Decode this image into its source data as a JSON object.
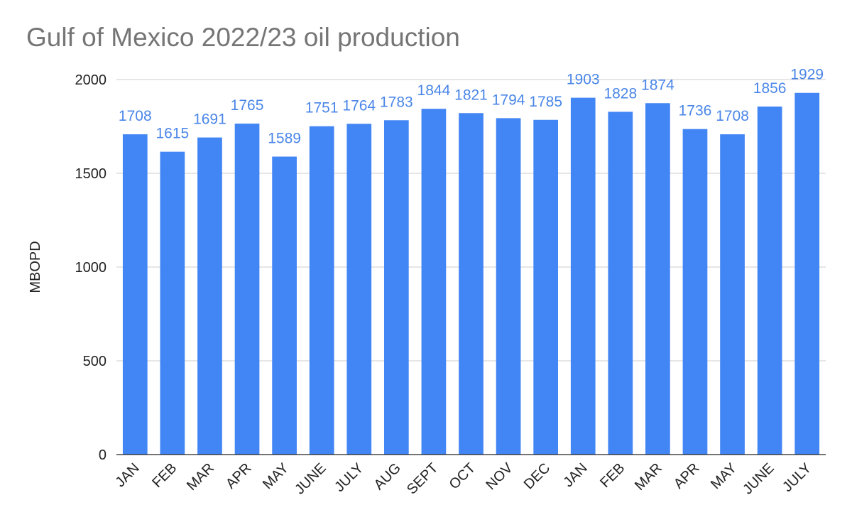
{
  "chart_data": {
    "type": "bar",
    "title": "Gulf of Mexico 2022/23 oil production",
    "xlabel": "",
    "ylabel": "MBOPD",
    "ylim": [
      0,
      2000
    ],
    "yticks": [
      0,
      500,
      1000,
      1500,
      2000
    ],
    "grid": true,
    "categories": [
      "JAN",
      "FEB",
      "MAR",
      "APR",
      "MAY",
      "JUNE",
      "JULY",
      "AUG",
      "SEPT",
      "OCT",
      "NOV",
      "DEC",
      "JAN",
      "FEB",
      "MAR",
      "APR",
      "MAY",
      "JUNE",
      "JULY"
    ],
    "values": [
      1708,
      1615,
      1691,
      1765,
      1589,
      1751,
      1764,
      1783,
      1844,
      1821,
      1794,
      1785,
      1903,
      1828,
      1874,
      1736,
      1708,
      1856,
      1929
    ],
    "data_labels": true,
    "colors": {
      "bar": "#4285f4",
      "label": "#4a86e8",
      "grid": "#cccccc",
      "axis": "#222222"
    }
  }
}
